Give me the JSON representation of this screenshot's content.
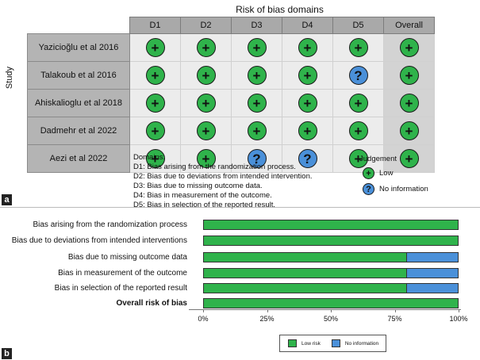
{
  "panel_labels": {
    "a": "a",
    "b": "b"
  },
  "rob_table": {
    "title": "Risk of bias domains",
    "y_axis_label": "Study",
    "columns": [
      "D1",
      "D2",
      "D3",
      "D4",
      "D5",
      "Overall"
    ],
    "studies": [
      {
        "name": "Yazicioğlu et al 2016",
        "judgements": [
          "low",
          "low",
          "low",
          "low",
          "low",
          "low"
        ]
      },
      {
        "name": "Talakoub et al 2016",
        "judgements": [
          "low",
          "low",
          "low",
          "low",
          "no-information",
          "low"
        ]
      },
      {
        "name": "Ahiskalioglu et al 2018",
        "judgements": [
          "low",
          "low",
          "low",
          "low",
          "low",
          "low"
        ]
      },
      {
        "name": "Dadmehr et al 2022",
        "judgements": [
          "low",
          "low",
          "low",
          "low",
          "low",
          "low"
        ]
      },
      {
        "name": "Aezi et al 2022",
        "judgements": [
          "low",
          "low",
          "no-information",
          "no-information",
          "low",
          "low"
        ]
      }
    ],
    "symbols": {
      "low": "+",
      "no-information": "?"
    },
    "domains_heading": "Domains:",
    "domains": [
      "D1: Bias arising from the randomization process.",
      "D2: Bias due to deviations from intended intervention.",
      "D3: Bias due to missing outcome data.",
      "D4: Bias in measurement of the outcome.",
      "D5: Bias in selection of the reported result."
    ],
    "judgement_legend": {
      "heading": "Judgement",
      "items": [
        {
          "key": "low",
          "symbol": "+",
          "label": "Low"
        },
        {
          "key": "no-information",
          "symbol": "?",
          "label": "No information"
        }
      ]
    }
  },
  "colors": {
    "low": "#2fb34b",
    "no_information": "#4a90d9"
  },
  "chart_data": {
    "type": "bar",
    "orientation": "horizontal-stacked",
    "categories": [
      "Bias arising from the randomization process",
      "Bias due to deviations from intended interventions",
      "Bias due to missing outcome data",
      "Bias in measurement of the outcome",
      "Bias in selection of the reported result",
      "Overall risk of bias"
    ],
    "bold_categories": [
      "Overall risk of bias"
    ],
    "series": [
      {
        "name": "Low risk",
        "values": [
          100,
          100,
          80,
          80,
          80,
          100
        ],
        "color": "#2fb34b"
      },
      {
        "name": "No information",
        "values": [
          0,
          0,
          20,
          20,
          20,
          0
        ],
        "color": "#4a90d9"
      }
    ],
    "xlim": [
      0,
      100
    ],
    "x_ticks": [
      "0%",
      "25%",
      "50%",
      "75%",
      "100%"
    ],
    "legend_position": "bottom"
  }
}
